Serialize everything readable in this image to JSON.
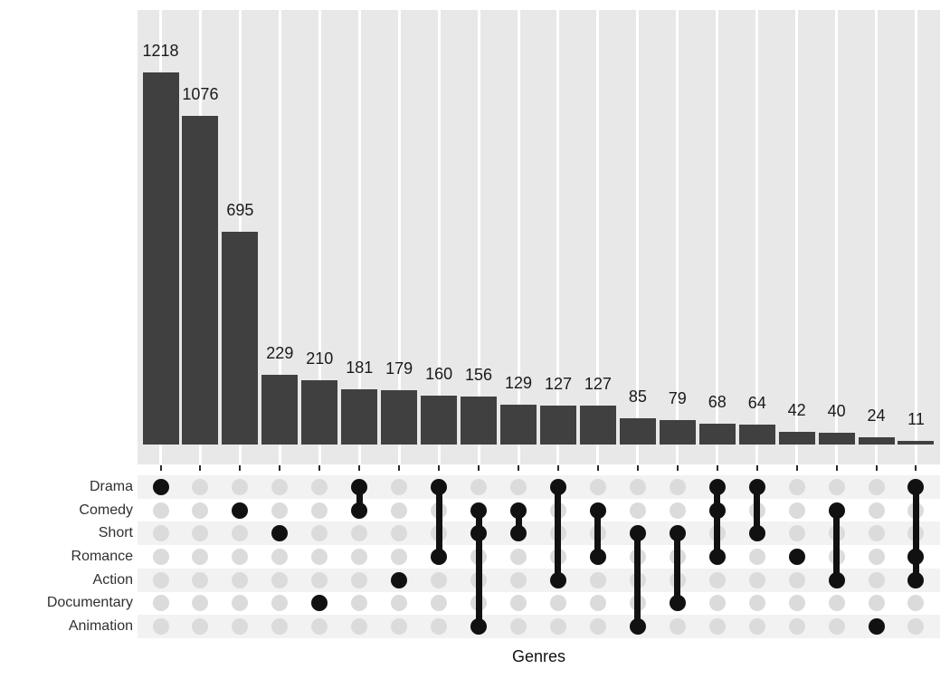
{
  "figure": {
    "xlabel": "Genres",
    "colors": {
      "panel_background": "#E8E8E8",
      "grid_line": "#FFFFFF",
      "bar_fill": "#404040",
      "stripe": "#F2F2F2",
      "dot_inactive": "#DBDBDB",
      "dot_active": "#111111",
      "value_label": "#1A1A1A",
      "set_label": "#303030"
    }
  },
  "chart_data": {
    "type": "bar",
    "variant": "upset",
    "title": "",
    "xlabel": "Genres",
    "ylabel": "",
    "grid": true,
    "legend": false,
    "ylim": [
      0,
      1280
    ],
    "sets": [
      "Drama",
      "Comedy",
      "Short",
      "Romance",
      "Action",
      "Documentary",
      "Animation"
    ],
    "categories": [
      "Drama",
      "(empty set)",
      "Comedy",
      "Short",
      "Documentary",
      "Drama+Comedy",
      "Action",
      "Drama+Romance",
      "Comedy+Short+Animation",
      "Comedy+Short",
      "Drama+Action",
      "Comedy+Romance",
      "Short+Animation",
      "Short+Documentary",
      "Drama+Comedy+Romance",
      "Drama+Short",
      "Romance",
      "Comedy+Action",
      "Animation",
      "Drama+Romance+Action"
    ],
    "values": [
      1218,
      1076,
      695,
      229,
      210,
      181,
      179,
      160,
      156,
      129,
      127,
      127,
      85,
      79,
      68,
      64,
      42,
      40,
      24,
      11
    ],
    "intersections": [
      {
        "members": [
          "Drama"
        ],
        "value": 1218
      },
      {
        "members": [],
        "value": 1076
      },
      {
        "members": [
          "Comedy"
        ],
        "value": 695
      },
      {
        "members": [
          "Short"
        ],
        "value": 229
      },
      {
        "members": [
          "Documentary"
        ],
        "value": 210
      },
      {
        "members": [
          "Drama",
          "Comedy"
        ],
        "value": 181
      },
      {
        "members": [
          "Action"
        ],
        "value": 179
      },
      {
        "members": [
          "Drama",
          "Romance"
        ],
        "value": 160
      },
      {
        "members": [
          "Comedy",
          "Short",
          "Animation"
        ],
        "value": 156
      },
      {
        "members": [
          "Comedy",
          "Short"
        ],
        "value": 129
      },
      {
        "members": [
          "Drama",
          "Action"
        ],
        "value": 127
      },
      {
        "members": [
          "Comedy",
          "Romance"
        ],
        "value": 127
      },
      {
        "members": [
          "Short",
          "Animation"
        ],
        "value": 85
      },
      {
        "members": [
          "Short",
          "Documentary"
        ],
        "value": 79
      },
      {
        "members": [
          "Drama",
          "Comedy",
          "Romance"
        ],
        "value": 68
      },
      {
        "members": [
          "Drama",
          "Short"
        ],
        "value": 64
      },
      {
        "members": [
          "Romance"
        ],
        "value": 42
      },
      {
        "members": [
          "Comedy",
          "Action"
        ],
        "value": 40
      },
      {
        "members": [
          "Animation"
        ],
        "value": 24
      },
      {
        "members": [
          "Drama",
          "Romance",
          "Action"
        ],
        "value": 11
      }
    ]
  }
}
